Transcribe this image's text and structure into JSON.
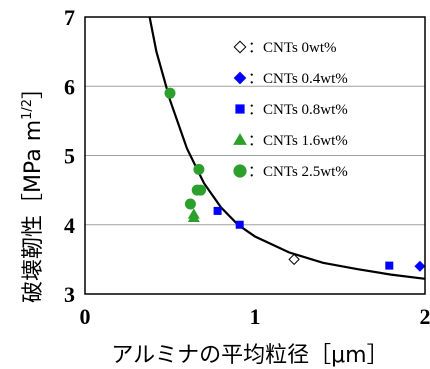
{
  "chart_data": {
    "type": "scatter",
    "xlabel": "アルミナの平均粒径［μm］",
    "ylabel_main": "破壊靭性［MPa m",
    "ylabel_sup": "1/2",
    "ylabel_end": "］",
    "xlim": [
      0,
      2
    ],
    "ylim": [
      3,
      7
    ],
    "xticks": [
      "0",
      "1",
      "2"
    ],
    "yticks": [
      "3",
      "4",
      "5",
      "6",
      "7"
    ],
    "grid": "horizontal",
    "legend_position": "top-right",
    "series": [
      {
        "name": "CNTs 0wt%",
        "marker": "diamond-open",
        "color": "#000000",
        "points": [
          [
            1.23,
            3.5
          ]
        ]
      },
      {
        "name": "CNTs 0.4wt%",
        "marker": "diamond",
        "color": "#0000ff",
        "points": [
          [
            1.97,
            3.4
          ]
        ]
      },
      {
        "name": "CNTs 0.8wt%",
        "marker": "square",
        "color": "#0000ff",
        "points": [
          [
            0.78,
            4.2
          ],
          [
            0.91,
            4.0
          ],
          [
            1.79,
            3.41
          ]
        ]
      },
      {
        "name": "CNTs 1.6wt%",
        "marker": "triangle",
        "color": "#2ca02c",
        "points": [
          [
            0.64,
            4.15
          ],
          [
            0.64,
            4.1
          ]
        ]
      },
      {
        "name": "CNTs 2.5wt%",
        "marker": "circle",
        "color": "#2ca02c",
        "points": [
          [
            0.5,
            5.9
          ],
          [
            0.62,
            4.3
          ],
          [
            0.66,
            4.5
          ],
          [
            0.68,
            4.5
          ],
          [
            0.67,
            4.8
          ]
        ]
      }
    ],
    "fit_curve": {
      "color": "#000000",
      "points": [
        [
          0.38,
          7.0
        ],
        [
          0.42,
          6.5
        ],
        [
          0.5,
          5.8
        ],
        [
          0.6,
          5.1
        ],
        [
          0.7,
          4.6
        ],
        [
          0.8,
          4.25
        ],
        [
          0.9,
          4.0
        ],
        [
          1.0,
          3.83
        ],
        [
          1.2,
          3.6
        ],
        [
          1.4,
          3.45
        ],
        [
          1.6,
          3.36
        ],
        [
          1.8,
          3.28
        ],
        [
          2.0,
          3.22
        ]
      ]
    }
  }
}
